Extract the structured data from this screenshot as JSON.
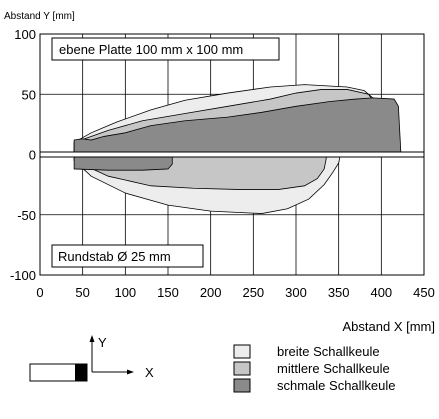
{
  "chart_data": {
    "type": "area",
    "ylabel": "Abstand Y [mm]",
    "xlabel": "Abstand X [mm]",
    "xlim": [
      0,
      450
    ],
    "ylim": [
      -100,
      100
    ],
    "x_ticks": [
      0,
      50,
      100,
      150,
      200,
      250,
      300,
      350,
      400,
      450
    ],
    "y_ticks": [
      100,
      50,
      0,
      -50,
      -100
    ],
    "grid": true,
    "annotations": {
      "top": "ebene Platte 100 mm x 100 mm",
      "bottom": "Rundstab Ø 25 mm"
    },
    "legend_position": "bottom-right",
    "series": [
      {
        "name": "breite Schallkeule",
        "color": "#ededed",
        "upper": [
          [
            40,
            10
          ],
          [
            60,
            18
          ],
          [
            90,
            27
          ],
          [
            130,
            37
          ],
          [
            170,
            45
          ],
          [
            220,
            51
          ],
          [
            270,
            56
          ],
          [
            310,
            58
          ],
          [
            360,
            56
          ],
          [
            380,
            53
          ],
          [
            390,
            47
          ],
          [
            395,
            40
          ],
          [
            395,
            0
          ]
        ],
        "lower": [
          [
            40,
            -5
          ],
          [
            60,
            -18
          ],
          [
            100,
            -32
          ],
          [
            150,
            -42
          ],
          [
            200,
            -47
          ],
          [
            260,
            -49
          ],
          [
            290,
            -45
          ],
          [
            315,
            -37
          ],
          [
            333,
            -25
          ],
          [
            343,
            -15
          ],
          [
            350,
            -7
          ],
          [
            352,
            0
          ]
        ]
      },
      {
        "name": "mittlere Schallkeule",
        "color": "#c6c6c6",
        "upper": [
          [
            40,
            10
          ],
          [
            80,
            20
          ],
          [
            120,
            28
          ],
          [
            170,
            34
          ],
          [
            220,
            40
          ],
          [
            270,
            46
          ],
          [
            300,
            51
          ],
          [
            330,
            54
          ],
          [
            360,
            54
          ],
          [
            385,
            50
          ],
          [
            395,
            40
          ],
          [
            395,
            0
          ]
        ],
        "lower": [
          [
            40,
            -5
          ],
          [
            80,
            -18
          ],
          [
            130,
            -26
          ],
          [
            180,
            -28
          ],
          [
            230,
            -29
          ],
          [
            280,
            -29
          ],
          [
            310,
            -26
          ],
          [
            325,
            -20
          ],
          [
            333,
            -12
          ],
          [
            335,
            -5
          ],
          [
            336,
            0
          ]
        ]
      },
      {
        "name": "schmale Schallkeule",
        "color": "#8a8a8a",
        "upper": [
          [
            40,
            12
          ],
          [
            50,
            13
          ],
          [
            60,
            12
          ],
          [
            75,
            15
          ],
          [
            100,
            18
          ],
          [
            130,
            24
          ],
          [
            170,
            28
          ],
          [
            220,
            31
          ],
          [
            260,
            35
          ],
          [
            300,
            40
          ],
          [
            340,
            44
          ],
          [
            370,
            46
          ],
          [
            390,
            47
          ],
          [
            415,
            46
          ],
          [
            420,
            40
          ],
          [
            423,
            0
          ]
        ],
        "lower": [
          [
            40,
            0
          ],
          [
            40,
            -12
          ],
          [
            80,
            -13
          ],
          [
            120,
            -13
          ],
          [
            150,
            -12
          ],
          [
            155,
            -8
          ],
          [
            155,
            0
          ]
        ]
      }
    ],
    "inset_axes": {
      "y_label": "Y",
      "x_label": "X"
    }
  }
}
